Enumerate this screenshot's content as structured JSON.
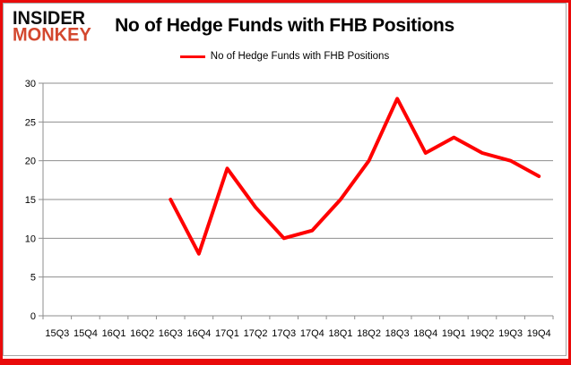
{
  "brand": {
    "name_line1": "INSIDER",
    "name_line2": "MONKEY",
    "line1_color": "#0d0d0d",
    "line2_color": "#d3472e"
  },
  "title": "No of Hedge Funds with FHB Positions",
  "legend": {
    "items": [
      {
        "label": "No of Hedge Funds with FHB Positions",
        "color": "#ff0000"
      }
    ],
    "position": "top-center"
  },
  "colors": {
    "frame_border": "#e90b0b",
    "chart_border": "#a6a6a6",
    "gridline": "#8e8e8e",
    "axis": "#8e8e8e",
    "tick_label": "#000000",
    "series_line": "#ff0000",
    "background": "#ffffff"
  },
  "chart_data": {
    "type": "line",
    "title": "No of Hedge Funds with FHB Positions",
    "categories": [
      "15Q3",
      "15Q4",
      "16Q1",
      "16Q2",
      "16Q3",
      "16Q4",
      "17Q1",
      "17Q2",
      "17Q3",
      "17Q4",
      "18Q1",
      "18Q2",
      "18Q3",
      "18Q4",
      "19Q1",
      "19Q2",
      "19Q3",
      "19Q4"
    ],
    "series": [
      {
        "name": "No of Hedge Funds with FHB Positions",
        "color": "#ff0000",
        "values": [
          null,
          null,
          null,
          null,
          15,
          8,
          19,
          14,
          10,
          11,
          15,
          20,
          28,
          21,
          23,
          21,
          20,
          18
        ]
      }
    ],
    "ylim": [
      0,
      30
    ],
    "y_ticks": [
      0,
      5,
      10,
      15,
      20,
      25,
      30
    ],
    "grid": "horizontal-only",
    "legend_position": "top-center",
    "x_axis_note": "no data plotted for 15Q3-16Q2"
  }
}
